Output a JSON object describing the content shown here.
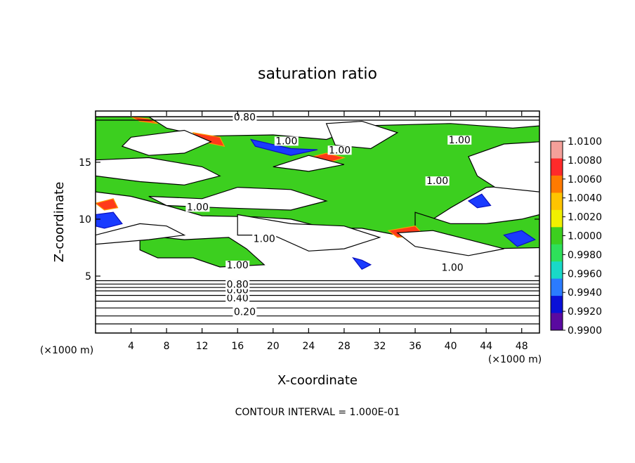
{
  "chart_data": {
    "type": "heatmap",
    "title": "saturation ratio",
    "xlabel": "X-coordinate",
    "ylabel": "Z-coordinate",
    "x_unit": "(×1000 m)",
    "y_unit": "(×1000 m)",
    "xlim": [
      0,
      50
    ],
    "ylim": [
      0,
      19.5
    ],
    "x_ticks": [
      "4",
      "8",
      "12",
      "16",
      "20",
      "24",
      "28",
      "32",
      "36",
      "40",
      "44",
      "48"
    ],
    "y_ticks": [
      "5",
      "10",
      "15"
    ],
    "footer": "CONTOUR INTERVAL = 1.000E-01",
    "colorbar": {
      "labels": [
        "1.0100",
        "1.0080",
        "1.0060",
        "1.0040",
        "1.0020",
        "1.0000",
        "0.9980",
        "0.9960",
        "0.9940",
        "0.9920",
        "0.9900"
      ],
      "colors": [
        "#f4a09a",
        "#ff2a2a",
        "#ff7a00",
        "#ffc400",
        "#f0f000",
        "#3ccf1f",
        "#2ee05a",
        "#19d9c8",
        "#2b7bff",
        "#0a10d8",
        "#5a0aa0"
      ]
    },
    "contour_labels": [
      {
        "text": "0.20",
        "x": 16.8,
        "y": 1.7
      },
      {
        "text": "0.40",
        "x": 16.0,
        "y": 2.9
      },
      {
        "text": "0.60",
        "x": 16.0,
        "y": 3.6
      },
      {
        "text": "0.80",
        "x": 16.0,
        "y": 4.1
      },
      {
        "text": "1.00",
        "x": 16.0,
        "y": 5.8
      },
      {
        "text": "1.00",
        "x": 19.0,
        "y": 8.1
      },
      {
        "text": "1.00",
        "x": 11.5,
        "y": 10.9
      },
      {
        "text": "1.00",
        "x": 40.2,
        "y": 5.6
      },
      {
        "text": "1.00",
        "x": 27.5,
        "y": 15.9
      },
      {
        "text": "1.00",
        "x": 21.5,
        "y": 16.7
      },
      {
        "text": "1.00",
        "x": 38.5,
        "y": 13.2
      },
      {
        "text": "1.00",
        "x": 41.0,
        "y": 16.8
      },
      {
        "text": "0.80",
        "x": 16.8,
        "y": 18.8
      }
    ],
    "saturated_regions_green": [
      [
        [
          0,
          19
        ],
        [
          6,
          19
        ],
        [
          8,
          18
        ],
        [
          12,
          17.3
        ],
        [
          20,
          17.4
        ],
        [
          26,
          17
        ],
        [
          30,
          18.2
        ],
        [
          40,
          18.4
        ],
        [
          47,
          18
        ],
        [
          50,
          18.2
        ],
        [
          50,
          13
        ],
        [
          44,
          12.8
        ],
        [
          40,
          11
        ],
        [
          38,
          10
        ],
        [
          34,
          8.6
        ],
        [
          30,
          9.2
        ],
        [
          26,
          9.2
        ],
        [
          22,
          10
        ],
        [
          18,
          10.2
        ],
        [
          12,
          10.3
        ],
        [
          8,
          11.2
        ],
        [
          4,
          12
        ],
        [
          0,
          12.4
        ]
      ],
      [
        [
          5,
          8.6
        ],
        [
          10,
          8.2
        ],
        [
          15,
          8.4
        ],
        [
          17,
          7.4
        ],
        [
          19,
          6
        ],
        [
          14,
          5.8
        ],
        [
          11,
          6.6
        ],
        [
          7,
          6.6
        ],
        [
          5,
          7.3
        ]
      ],
      [
        [
          36,
          10.6
        ],
        [
          40,
          9.6
        ],
        [
          44,
          9.6
        ],
        [
          48,
          10
        ],
        [
          50,
          10.4
        ],
        [
          50,
          7.5
        ],
        [
          44,
          7.4
        ],
        [
          40,
          8.6
        ],
        [
          36,
          9
        ]
      ]
    ],
    "white_regions": [
      [
        [
          4,
          17.2
        ],
        [
          10,
          17.8
        ],
        [
          13,
          16.8
        ],
        [
          10,
          15.8
        ],
        [
          6,
          15.6
        ],
        [
          3,
          16.4
        ]
      ],
      [
        [
          0,
          15.2
        ],
        [
          6,
          15.4
        ],
        [
          12,
          14.6
        ],
        [
          14,
          13.8
        ],
        [
          10,
          13
        ],
        [
          5,
          13.3
        ],
        [
          0,
          13.8
        ]
      ],
      [
        [
          6,
          12
        ],
        [
          12,
          11.8
        ],
        [
          16,
          12.8
        ],
        [
          22,
          12.6
        ],
        [
          26,
          11.6
        ],
        [
          22,
          10.8
        ],
        [
          14,
          11
        ],
        [
          8,
          11.2
        ]
      ],
      [
        [
          26,
          18.4
        ],
        [
          30,
          18.6
        ],
        [
          34,
          17.6
        ],
        [
          31,
          16.2
        ],
        [
          27,
          16.5
        ]
      ],
      [
        [
          42,
          15.5
        ],
        [
          46,
          16.6
        ],
        [
          50,
          16.8
        ],
        [
          50,
          12.4
        ],
        [
          45,
          12.8
        ],
        [
          43,
          13.8
        ]
      ],
      [
        [
          20,
          14.6
        ],
        [
          24,
          15.6
        ],
        [
          28,
          14.8
        ],
        [
          24,
          14.2
        ]
      ],
      [
        [
          16,
          10.4
        ],
        [
          22,
          9.6
        ],
        [
          28,
          9.4
        ],
        [
          32,
          8.4
        ],
        [
          28,
          7.4
        ],
        [
          24,
          7.2
        ],
        [
          20,
          8.6
        ],
        [
          16,
          8.6
        ]
      ],
      [
        [
          0,
          8.6
        ],
        [
          5,
          9.6
        ],
        [
          8,
          9.4
        ],
        [
          10,
          8.6
        ],
        [
          6,
          8.2
        ],
        [
          0,
          7.8
        ]
      ],
      [
        [
          34,
          8.8
        ],
        [
          38,
          9
        ],
        [
          42,
          8.2
        ],
        [
          46,
          7.4
        ],
        [
          42,
          6.8
        ],
        [
          36,
          7.6
        ]
      ]
    ],
    "undersaturated_rim_blue": [
      [
        [
          0,
          10.4
        ],
        [
          2,
          10.6
        ],
        [
          3,
          9.6
        ],
        [
          1,
          9.2
        ],
        [
          0,
          9.4
        ]
      ],
      [
        [
          17.5,
          17
        ],
        [
          22,
          16.2
        ],
        [
          25,
          16.1
        ],
        [
          22,
          15.6
        ],
        [
          18,
          16.4
        ]
      ],
      [
        [
          29,
          6.6
        ],
        [
          30,
          6.4
        ],
        [
          31,
          6
        ],
        [
          30,
          5.6
        ]
      ],
      [
        [
          46,
          8.6
        ],
        [
          48,
          9
        ],
        [
          49.5,
          8.2
        ],
        [
          47.5,
          7.6
        ]
      ],
      [
        [
          42,
          11.6
        ],
        [
          43.5,
          12.2
        ],
        [
          44.5,
          11.2
        ],
        [
          43,
          11
        ]
      ]
    ],
    "supersaturated_rim_red": [
      [
        [
          4,
          19
        ],
        [
          6,
          18.8
        ],
        [
          7,
          18.4
        ],
        [
          5,
          18.6
        ]
      ],
      [
        [
          11,
          17.6
        ],
        [
          14,
          17.2
        ],
        [
          14.5,
          16.4
        ],
        [
          12,
          16.8
        ]
      ],
      [
        [
          24,
          15.4
        ],
        [
          26,
          15.8
        ],
        [
          28,
          15.4
        ],
        [
          25.5,
          14.8
        ]
      ],
      [
        [
          0,
          11.4
        ],
        [
          2,
          11.8
        ],
        [
          2.5,
          11
        ],
        [
          1,
          10.8
        ]
      ],
      [
        [
          33,
          9
        ],
        [
          36,
          9.4
        ],
        [
          37,
          8.6
        ],
        [
          34,
          8.4
        ]
      ]
    ],
    "horizontal_contours": [
      0.8,
      1.5,
      2.2,
      2.8,
      3.3,
      3.7,
      4.0,
      4.3,
      4.6
    ]
  }
}
